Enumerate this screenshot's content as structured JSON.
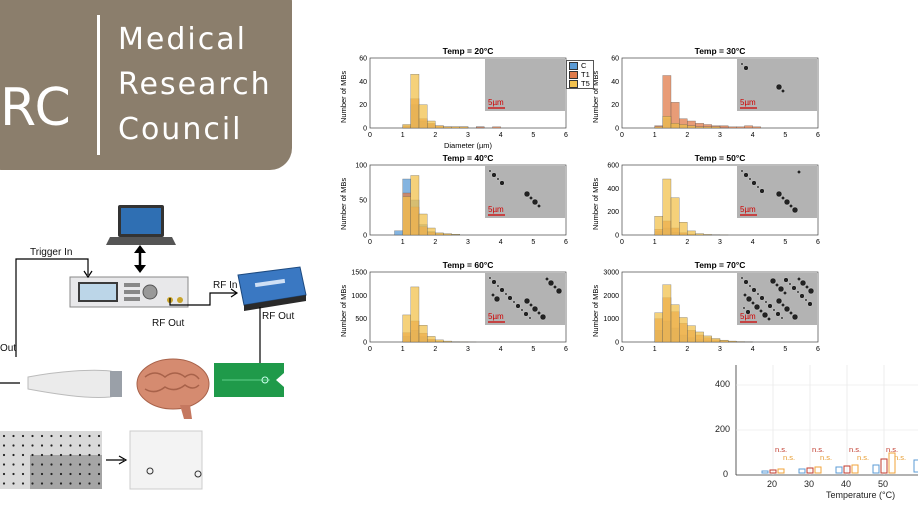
{
  "logo": {
    "letters": "RC",
    "words": [
      "Medical",
      "Research",
      "Council"
    ]
  },
  "diagram": {
    "trigger_in": "Trigger In",
    "rf_in": "RF In",
    "rf_out_1": "RF Out",
    "rf_out_2": "RF Out",
    "out_left": "Out"
  },
  "legend": [
    "C",
    "T1",
    "T5"
  ],
  "colors": {
    "C": "#5b9bd5",
    "T1": "#e07b4a",
    "T5": "#f2c14e",
    "logo_bg": "#8b7e6c",
    "scale_bar": "#d00000"
  },
  "scale_label": "5µm",
  "xlabel_top": "Diameter (µm)",
  "ylabel": "Number of MBs",
  "bottom_chart": {
    "xlabel": "Temperature (°C)",
    "yticks": [
      "0",
      "200",
      "400"
    ],
    "xticks": [
      "20",
      "30",
      "40",
      "50"
    ],
    "ns": "n.s."
  },
  "chart_data": [
    {
      "type": "bar",
      "title": "Temp = 20°C",
      "ylim": [
        0,
        60
      ],
      "yticks": [
        "0",
        "20",
        "40",
        "60"
      ],
      "xticks": [
        "0",
        "1",
        "2",
        "3",
        "4",
        "5",
        "6"
      ],
      "series": [
        {
          "name": "C",
          "values": [
            0,
            0,
            2,
            20,
            6,
            3,
            1,
            1,
            0,
            1,
            0,
            1,
            0,
            0,
            0,
            0
          ]
        },
        {
          "name": "T1",
          "values": [
            0,
            0,
            2,
            25,
            8,
            4,
            2,
            1,
            1,
            1,
            0,
            1,
            0,
            1,
            0,
            0
          ]
        },
        {
          "name": "T5",
          "values": [
            0,
            0,
            3,
            46,
            20,
            6,
            2,
            1,
            1,
            1,
            0,
            0,
            0,
            0,
            0,
            0
          ]
        }
      ]
    },
    {
      "type": "bar",
      "title": "Temp = 30°C",
      "ylim": [
        0,
        60
      ],
      "yticks": [
        "0",
        "20",
        "40",
        "60"
      ],
      "xticks": [
        "0",
        "1",
        "2",
        "3",
        "4",
        "5",
        "6"
      ],
      "series": [
        {
          "name": "C",
          "values": [
            0,
            0,
            1,
            8,
            3,
            2,
            2,
            1,
            1,
            1,
            1,
            0,
            0,
            0,
            0,
            0
          ]
        },
        {
          "name": "T1",
          "values": [
            0,
            0,
            2,
            45,
            22,
            8,
            6,
            4,
            3,
            2,
            2,
            1,
            1,
            2,
            1,
            0
          ]
        },
        {
          "name": "T5",
          "values": [
            0,
            0,
            1,
            10,
            4,
            3,
            2,
            1,
            1,
            1,
            0,
            0,
            0,
            0,
            0,
            0
          ]
        }
      ]
    },
    {
      "type": "bar",
      "title": "Temp = 40°C",
      "ylim": [
        0,
        100
      ],
      "yticks": [
        "0",
        "50",
        "100"
      ],
      "xticks": [
        "0",
        "1",
        "2",
        "3",
        "4",
        "5",
        "6"
      ],
      "series": [
        {
          "name": "C",
          "values": [
            0,
            6,
            80,
            50,
            15,
            5,
            2,
            1,
            1,
            0,
            0,
            0,
            0,
            0,
            0,
            0
          ]
        },
        {
          "name": "T1",
          "values": [
            0,
            0,
            60,
            40,
            12,
            4,
            2,
            1,
            0,
            0,
            0,
            0,
            0,
            0,
            0,
            0
          ]
        },
        {
          "name": "T5",
          "values": [
            0,
            0,
            55,
            85,
            30,
            10,
            3,
            2,
            1,
            0,
            0,
            0,
            0,
            0,
            0,
            0
          ]
        }
      ]
    },
    {
      "type": "bar",
      "title": "Temp = 50°C",
      "ylim": [
        0,
        600
      ],
      "yticks": [
        "0",
        "200",
        "400",
        "600"
      ],
      "xticks": [
        "0",
        "1",
        "2",
        "3",
        "4",
        "5",
        "6"
      ],
      "series": [
        {
          "name": "C",
          "values": [
            0,
            0,
            30,
            60,
            25,
            10,
            4,
            2,
            1,
            0,
            0,
            0,
            0,
            0,
            0,
            0
          ]
        },
        {
          "name": "T1",
          "values": [
            0,
            0,
            50,
            120,
            60,
            20,
            8,
            3,
            1,
            0,
            0,
            0,
            0,
            0,
            0,
            0
          ]
        },
        {
          "name": "T5",
          "values": [
            0,
            0,
            160,
            480,
            320,
            110,
            35,
            12,
            5,
            2,
            1,
            0,
            0,
            0,
            0,
            0
          ]
        }
      ]
    },
    {
      "type": "bar",
      "title": "Temp = 60°C",
      "ylim": [
        0,
        1500
      ],
      "yticks": [
        "0",
        "500",
        "1000",
        "1500"
      ],
      "xticks": [
        "0",
        "1",
        "2",
        "3",
        "4",
        "5",
        "6"
      ],
      "series": [
        {
          "name": "C",
          "values": [
            0,
            0,
            120,
            250,
            110,
            35,
            12,
            4,
            2,
            0,
            0,
            0,
            0,
            0,
            0,
            0
          ]
        },
        {
          "name": "T1",
          "values": [
            0,
            0,
            200,
            450,
            190,
            60,
            20,
            6,
            3,
            1,
            0,
            0,
            0,
            0,
            0,
            0
          ]
        },
        {
          "name": "T5",
          "values": [
            0,
            0,
            580,
            1180,
            360,
            120,
            45,
            20,
            8,
            3,
            1,
            0,
            0,
            0,
            0,
            0
          ]
        }
      ]
    },
    {
      "type": "bar",
      "title": "Temp = 70°C",
      "ylim": [
        0,
        3000
      ],
      "yticks": [
        "0",
        "1000",
        "2000",
        "3000"
      ],
      "xticks": [
        "0",
        "1",
        "2",
        "3",
        "4",
        "5",
        "6"
      ],
      "series": [
        {
          "name": "C",
          "values": [
            0,
            0,
            500,
            900,
            600,
            300,
            180,
            100,
            60,
            30,
            15,
            8,
            3,
            0,
            0,
            0
          ]
        },
        {
          "name": "T1",
          "values": [
            0,
            0,
            1000,
            1900,
            1300,
            800,
            500,
            300,
            180,
            100,
            60,
            30,
            15,
            5,
            0,
            0
          ]
        },
        {
          "name": "T5",
          "values": [
            0,
            0,
            1250,
            2450,
            1600,
            1050,
            700,
            430,
            260,
            150,
            80,
            40,
            20,
            8,
            0,
            0
          ]
        }
      ]
    }
  ]
}
